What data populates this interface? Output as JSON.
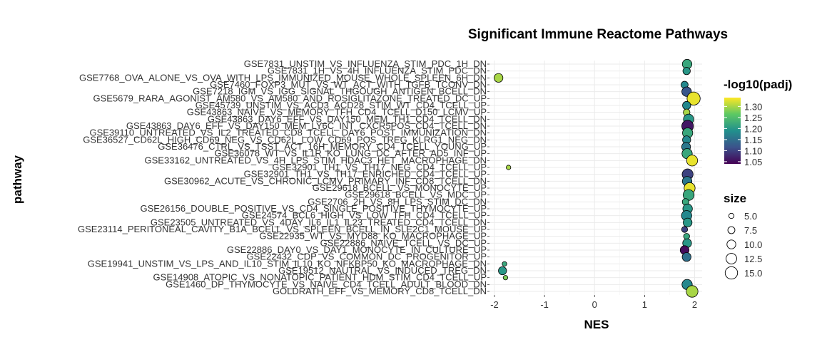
{
  "chart_data": {
    "type": "scatter",
    "title": "Significant Immune Reactome Pathways",
    "xlabel": "NES",
    "ylabel": "pathway",
    "xlim": [
      -2.1,
      2.15
    ],
    "xticks": [
      -2,
      -1,
      0,
      1,
      2
    ],
    "grid": true,
    "legend_placement": "right",
    "color_legend": {
      "title": "-log10(padj)",
      "ticks": [
        1.05,
        1.1,
        1.15,
        1.2,
        1.25,
        1.3
      ],
      "tick_labels": [
        "1.05",
        "1.10",
        "1.15",
        "1.20",
        "1.25",
        "1.30"
      ],
      "range": [
        1.04,
        1.34
      ],
      "colors": [
        "#440154",
        "#3b528b",
        "#21908d",
        "#5dc863",
        "#fde725"
      ]
    },
    "size_legend": {
      "title": "size",
      "values": [
        5.0,
        7.5,
        10.0,
        12.5,
        15.0
      ],
      "labels": [
        "5.0",
        "7.5",
        "10.0",
        "12.5",
        "15.0"
      ]
    },
    "pathways": [
      "GSE7831_UNSTIM_VS_INFLUENZA_STIM_PDC_1H_DN",
      "GSE7831_1H_VS_4H_INFLUENZA_STIM_PDC_DN",
      "GSE7768_OVA_ALONE_VS_OVA_WITH_LPS_IMMUNIZED_MOUSE_WHOLE_SPLEEN_6H_DN",
      "GSE7460_FOXP3_MUT_VS_WT_ACT_WITH_TGFB_TCONV_DN",
      "GSE7218_IGM_VS_IGG_SIGNAL_THGOUGH_ANTIGEN_BCELL_DN",
      "GSE5679_RARA_AGONIST_AM580_VS_AM580_AND_ROSIGLITAZONE_TREATED_DC_UP",
      "GSE45739_UNSTIM_VS_ACD3_ACD28_STIM_WT_CD4_TCELL_UP",
      "GSE43863_NAIVE_VS_MEMORY_TFH_CD4_TCELL_D150_LCMV_UP",
      "GSE43863_DAY6_EFF_VS_DAY150_MEM_TH1_CD4_TCELL_DN",
      "GSE43863_DAY6_EFF_VS_DAY150_MEM_LY6C_INT_CXCR5POS_CD4_TCELL_DN",
      "GSE39110_UNTREATED_VS_IL2_TREATED_CD8_TCELL_DAY6_POST_IMMUNIZATION_DN",
      "GSE36527_CD62L_HIGH_CD69_NEG_VS_CD62L_LOW_CD69_POS_TREG_KLRG1_NEG_DN",
      "GSE36476_CTRL_VS_TSST_ACT_16H_MEMORY_CD4_TCELL_YOUNG_UP",
      "GSE36078_WT_VS_IL1R_KO_LUNG_DC_AFTER_AD5_INF_UP",
      "GSE33162_UNTREATED_VS_4H_LPS_STIM_HDAC3_HET_MACROPHAGE_DN",
      "GSE32901_TH1_VS_TH17_NEG_CD4_TCELL_UP",
      "GSE32901_TH1_VS_TH17_ENRICHED_CD4_TCELL_UP",
      "GSE30962_ACUTE_VS_CHRONIC_LCMV_PRIMARY_INF_CD8_TCELL_DN",
      "GSE29618_BCELL_VS_MONOCYTE_UP",
      "GSE29618_BCELL_VS_MDC_UP",
      "GSE2706_2H_VS_8H_LPS_STIM_DC_DN",
      "GSE26156_DOUBLE_POSITIVE_VS_CD4_SINGLE_POSITIVE_THYMOCYTE_UP",
      "GSE24574_BCL6_HIGH_VS_LOW_TFH_CD4_TCELL_UP",
      "GSE23505_UNTREATED_VS_4DAY_IL6_IL1_IL23_TREATED_CD4_TCELL_DN",
      "GSE23114_PERITONEAL_CAVITY_B1A_BCELL_VS_SPLEEN_BCELL_IN_SLE2C1_MOUSE_UP",
      "GSE22935_WT_VS_MYD88_KO_MACROPHAGE_UP",
      "GSE22886_NAIVE_TCELL_VS_DC_UP",
      "GSE22886_DAY0_VS_DAY1_MONOCYTE_IN_CULTURE_UP",
      "GSE22432_CDP_VS_COMMON_DC_PROGENITOR_UP",
      "GSE19941_UNSTIM_VS_LPS_AND_IL10_STIM_IL10_KO_NFKBP50_KO_MACROPHAGE_DN",
      "GSE19512_NAUTRAL_VS_INDUCED_TREG_DN",
      "GSE14908_ATOPIC_VS_NONATOPIC_PATIENT_HDM_STIM_CD4_TCELL_UP",
      "GSE1460_DP_THYMOCYTE_VS_NAIVE_CD4_TCELL_ADULT_BLOOD_DN",
      "GOLDRATH_EFF_VS_MEMORY_CD8_TCELL_DN"
    ],
    "points": [
      {
        "pathway": "GSE7831_UNSTIM_VS_INFLUENZA_STIM_PDC_1H_DN",
        "nes": 1.85,
        "neg_log10_padj": 1.22,
        "size": 11
      },
      {
        "pathway": "GSE7831_1H_VS_4H_INFLUENZA_STIM_PDC_DN",
        "nes": 1.84,
        "neg_log10_padj": 1.2,
        "size": 8
      },
      {
        "pathway": "GSE7768_OVA_ALONE_VS_OVA_WITH_LPS_IMMUNIZED_MOUSE_WHOLE_SPLEEN_6H_DN",
        "nes": -1.92,
        "neg_log10_padj": 1.3,
        "size": 10
      },
      {
        "pathway": "GSE7460_FOXP3_MUT_VS_WT_ACT_WITH_TGFB_TCONV_DN",
        "nes": 1.8,
        "neg_log10_padj": 1.18,
        "size": 7.5
      },
      {
        "pathway": "GSE7218_IGM_VS_IGG_SIGNAL_THGOUGH_ANTIGEN_BCELL_DN",
        "nes": 1.84,
        "neg_log10_padj": 1.12,
        "size": 11
      },
      {
        "pathway": "GSE5679_RARA_AGONIST_AM580_VS_AM580_AND_ROSIGLITAZONE_TREATED_DC_UP",
        "nes": 1.98,
        "neg_log10_padj": 1.33,
        "size": 16
      },
      {
        "pathway": "GSE45739_UNSTIM_VS_ACD3_ACD28_STIM_WT_CD4_TCELL_UP",
        "nes": 1.84,
        "neg_log10_padj": 1.18,
        "size": 9
      },
      {
        "pathway": "GSE43863_NAIVE_VS_MEMORY_TFH_CD4_TCELL_D150_LCMV_UP",
        "nes": 1.84,
        "neg_log10_padj": 1.3,
        "size": 7
      },
      {
        "pathway": "GSE43863_DAY6_EFF_VS_DAY150_MEM_TH1_CD4_TCELL_DN",
        "nes": 1.88,
        "neg_log10_padj": 1.2,
        "size": 12
      },
      {
        "pathway": "GSE43863_DAY6_EFF_VS_DAY150_MEM_LY6C_INT_CXCR5POS_CD4_TCELL_DN",
        "nes": 1.86,
        "neg_log10_padj": 1.06,
        "size": 14
      },
      {
        "pathway": "GSE39110_UNTREATED_VS_IL2_TREATED_CD8_TCELL_DAY6_POST_IMMUNIZATION_DN",
        "nes": 1.86,
        "neg_log10_padj": 1.22,
        "size": 12
      },
      {
        "pathway": "GSE36527_CD62L_HIGH_CD69_NEG_VS_CD62L_LOW_CD69_POS_TREG_KLRG1_NEG_DN",
        "nes": 1.84,
        "neg_log10_padj": 1.18,
        "size": 9
      },
      {
        "pathway": "GSE36476_CTRL_VS_TSST_ACT_16H_MEMORY_CD4_TCELL_YOUNG_UP",
        "nes": 1.83,
        "neg_log10_padj": 1.16,
        "size": 10
      },
      {
        "pathway": "GSE36078_WT_VS_IL1R_KO_LUNG_DC_AFTER_AD5_INF_UP",
        "nes": 1.85,
        "neg_log10_padj": 1.22,
        "size": 12
      },
      {
        "pathway": "GSE33162_UNTREATED_VS_4H_LPS_STIM_HDAC3_HET_MACROPHAGE_DN",
        "nes": 1.95,
        "neg_log10_padj": 1.33,
        "size": 13
      },
      {
        "pathway": "GSE32901_TH1_VS_TH17_NEG_CD4_TCELL_UP",
        "nes": -1.72,
        "neg_log10_padj": 1.3,
        "size": 4
      },
      {
        "pathway": "GSE32901_TH1_VS_TH17_ENRICHED_CD4_TCELL_UP",
        "nes": 1.86,
        "neg_log10_padj": 1.1,
        "size": 13
      },
      {
        "pathway": "GSE30962_ACUTE_VS_CHRONIC_LCMV_PRIMARY_INF_CD8_TCELL_DN",
        "nes": 1.85,
        "neg_log10_padj": 1.16,
        "size": 11
      },
      {
        "pathway": "GSE29618_BCELL_VS_MONOCYTE_UP",
        "nes": 1.9,
        "neg_log10_padj": 1.33,
        "size": 13
      },
      {
        "pathway": "GSE29618_BCELL_VS_MDC_UP",
        "nes": 1.88,
        "neg_log10_padj": 1.22,
        "size": 13
      },
      {
        "pathway": "GSE2706_2H_VS_8H_LPS_STIM_DC_DN",
        "nes": 1.82,
        "neg_log10_padj": 1.22,
        "size": 7
      },
      {
        "pathway": "GSE26156_DOUBLE_POSITIVE_VS_CD4_SINGLE_POSITIVE_THYMOCYTE_UP",
        "nes": 1.86,
        "neg_log10_padj": 1.2,
        "size": 11
      },
      {
        "pathway": "GSE24574_BCL6_HIGH_VS_LOW_TFH_CD4_TCELL_UP",
        "nes": 1.84,
        "neg_log10_padj": 1.18,
        "size": 12
      },
      {
        "pathway": "GSE23505_UNTREATED_VS_4DAY_IL6_IL1_IL23_TREATED_CD4_TCELL_DN",
        "nes": 1.86,
        "neg_log10_padj": 1.2,
        "size": 10
      },
      {
        "pathway": "GSE23114_PERITONEAL_CAVITY_B1A_BCELL_VS_SPLEEN_BCELL_IN_SLE2C1_MOUSE_UP",
        "nes": 1.8,
        "neg_log10_padj": 1.1,
        "size": 6
      },
      {
        "pathway": "GSE22935_WT_VS_MYD88_KO_MACROPHAGE_UP",
        "nes": 1.84,
        "neg_log10_padj": 1.22,
        "size": 6
      },
      {
        "pathway": "GSE22886_NAIVE_TCELL_VS_DC_UP",
        "nes": 1.85,
        "neg_log10_padj": 1.2,
        "size": 10
      },
      {
        "pathway": "GSE22886_DAY0_VS_DAY1_MONOCYTE_IN_CULTURE_UP",
        "nes": 1.8,
        "neg_log10_padj": 1.05,
        "size": 10
      },
      {
        "pathway": "GSE22432_CDP_VS_COMMON_DC_PROGENITOR_UP",
        "nes": 1.84,
        "neg_log10_padj": 1.15,
        "size": 10
      },
      {
        "pathway": "GSE19941_UNSTIM_VS_LPS_AND_IL10_STIM_IL10_KO_NFKBP50_KO_MACROPHAGE_DN",
        "nes": -1.8,
        "neg_log10_padj": 1.22,
        "size": 4
      },
      {
        "pathway": "GSE19512_NAUTRAL_VS_INDUCED_TREG_DN",
        "nes": -1.84,
        "neg_log10_padj": 1.2,
        "size": 9
      },
      {
        "pathway": "GSE14908_ATOPIC_VS_NONATOPIC_PATIENT_HDM_STIM_CD4_TCELL_UP",
        "nes": -1.78,
        "neg_log10_padj": 1.28,
        "size": 4
      },
      {
        "pathway": "GSE1460_DP_THYMOCYTE_VS_NAIVE_CD4_TCELL_ADULT_BLOOD_DN",
        "nes": 1.85,
        "neg_log10_padj": 1.18,
        "size": 12
      },
      {
        "pathway": "GOLDRATH_EFF_VS_MEMORY_CD8_TCELL_DN",
        "nes": 1.95,
        "neg_log10_padj": 1.3,
        "size": 14
      }
    ]
  }
}
